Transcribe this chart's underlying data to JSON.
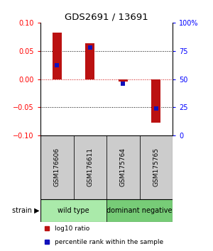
{
  "title": "GDS2691 / 13691",
  "samples": [
    "GSM176606",
    "GSM176611",
    "GSM175764",
    "GSM175765"
  ],
  "log10_ratio": [
    0.082,
    0.063,
    -0.005,
    -0.077
  ],
  "percentile_rank": [
    62,
    78,
    46,
    24
  ],
  "group_configs": [
    {
      "label": "wild type",
      "indices": [
        0,
        1
      ],
      "color": "#aaeaaa"
    },
    {
      "label": "dominant negative",
      "indices": [
        2,
        3
      ],
      "color": "#77cc77"
    }
  ],
  "ylim_left": [
    -0.1,
    0.1
  ],
  "ylim_right": [
    0,
    100
  ],
  "yticks_left": [
    -0.1,
    -0.05,
    0,
    0.05,
    0.1
  ],
  "yticks_right": [
    0,
    25,
    50,
    75,
    100
  ],
  "ytick_labels_right": [
    "0",
    "25",
    "50",
    "75",
    "100%"
  ],
  "hlines_black": [
    0.05,
    -0.05
  ],
  "hline_red": 0,
  "bar_color": "#bb1111",
  "dot_color": "#1111bb",
  "bar_width": 0.28,
  "dot_size": 25,
  "legend_items": [
    {
      "color": "#bb1111",
      "label": "log10 ratio"
    },
    {
      "color": "#1111bb",
      "label": "percentile rank within the sample"
    }
  ],
  "sample_box_color": "#cccccc",
  "fig_width": 3.0,
  "fig_height": 3.54
}
